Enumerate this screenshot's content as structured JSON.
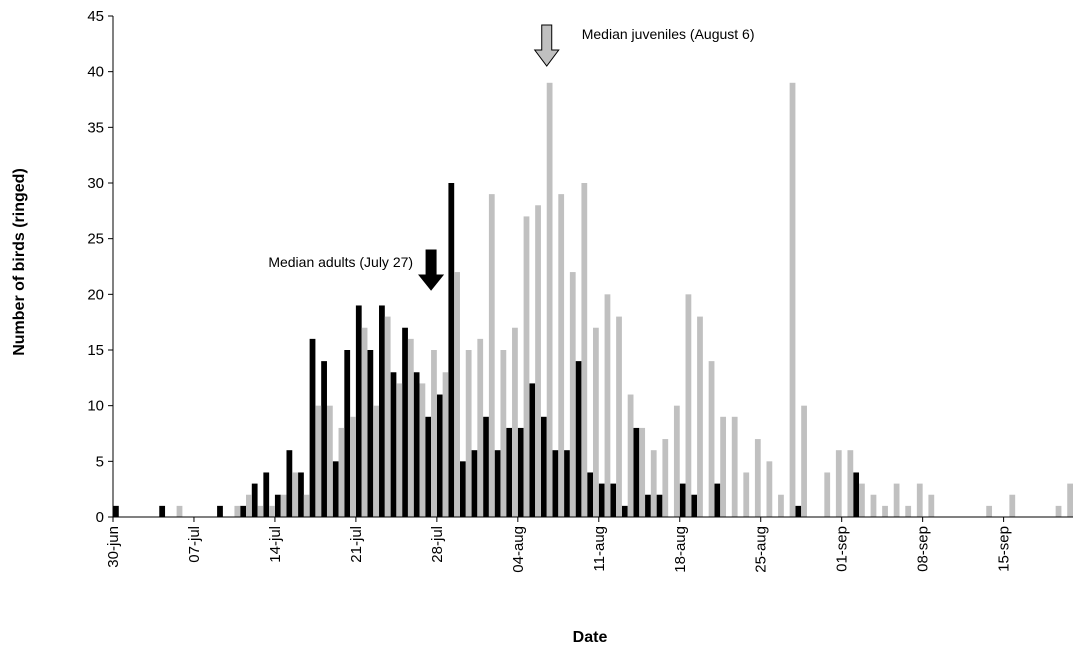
{
  "chart_data": {
    "type": "bar",
    "xlabel": "Date",
    "ylabel": "Number of birds (ringed)",
    "ylim": [
      0,
      45
    ],
    "yticks": [
      0,
      5,
      10,
      15,
      20,
      25,
      30,
      35,
      40,
      45
    ],
    "xlim": [
      "2000-06-30",
      "2000-09-20"
    ],
    "xtick_labels": [
      "30-jun",
      "07-jul",
      "14-jul",
      "21-jul",
      "28-jul",
      "04-aug",
      "11-aug",
      "18-aug",
      "25-aug",
      "01-sep",
      "08-sep",
      "15-sep"
    ],
    "xtick_dates": [
      "2000-06-30",
      "2000-07-07",
      "2000-07-14",
      "2000-07-21",
      "2000-07-28",
      "2000-08-04",
      "2000-08-11",
      "2000-08-18",
      "2000-08-25",
      "2000-09-01",
      "2000-09-08",
      "2000-09-15"
    ],
    "grid": false,
    "legend": "none",
    "series": [
      {
        "key": "adults",
        "color": "#000000",
        "points": [
          [
            "2000-06-30",
            1
          ],
          [
            "2000-07-04",
            1
          ],
          [
            "2000-07-09",
            1
          ],
          [
            "2000-07-11",
            1
          ],
          [
            "2000-07-12",
            3
          ],
          [
            "2000-07-13",
            4
          ],
          [
            "2000-07-14",
            2
          ],
          [
            "2000-07-15",
            6
          ],
          [
            "2000-07-16",
            4
          ],
          [
            "2000-07-17",
            16
          ],
          [
            "2000-07-18",
            14
          ],
          [
            "2000-07-19",
            5
          ],
          [
            "2000-07-20",
            15
          ],
          [
            "2000-07-21",
            19
          ],
          [
            "2000-07-22",
            15
          ],
          [
            "2000-07-23",
            19
          ],
          [
            "2000-07-24",
            13
          ],
          [
            "2000-07-25",
            17
          ],
          [
            "2000-07-26",
            13
          ],
          [
            "2000-07-27",
            9
          ],
          [
            "2000-07-28",
            11
          ],
          [
            "2000-07-29",
            30
          ],
          [
            "2000-07-30",
            5
          ],
          [
            "2000-07-31",
            6
          ],
          [
            "2000-08-01",
            9
          ],
          [
            "2000-08-02",
            6
          ],
          [
            "2000-08-03",
            8
          ],
          [
            "2000-08-04",
            8
          ],
          [
            "2000-08-05",
            12
          ],
          [
            "2000-08-06",
            9
          ],
          [
            "2000-08-07",
            6
          ],
          [
            "2000-08-08",
            6
          ],
          [
            "2000-08-09",
            14
          ],
          [
            "2000-08-10",
            4
          ],
          [
            "2000-08-11",
            3
          ],
          [
            "2000-08-12",
            3
          ],
          [
            "2000-08-13",
            1
          ],
          [
            "2000-08-14",
            8
          ],
          [
            "2000-08-15",
            2
          ],
          [
            "2000-08-16",
            2
          ],
          [
            "2000-08-18",
            3
          ],
          [
            "2000-08-19",
            2
          ],
          [
            "2000-08-21",
            3
          ],
          [
            "2000-08-28",
            1
          ],
          [
            "2000-09-02",
            4
          ]
        ]
      },
      {
        "key": "juveniles",
        "color": "#c0c0c0",
        "points": [
          [
            "2000-07-05",
            1
          ],
          [
            "2000-07-10",
            1
          ],
          [
            "2000-07-11",
            2
          ],
          [
            "2000-07-12",
            1
          ],
          [
            "2000-07-13",
            1
          ],
          [
            "2000-07-14",
            2
          ],
          [
            "2000-07-15",
            4
          ],
          [
            "2000-07-16",
            2
          ],
          [
            "2000-07-17",
            10
          ],
          [
            "2000-07-18",
            10
          ],
          [
            "2000-07-19",
            8
          ],
          [
            "2000-07-20",
            9
          ],
          [
            "2000-07-21",
            17
          ],
          [
            "2000-07-22",
            10
          ],
          [
            "2000-07-23",
            18
          ],
          [
            "2000-07-24",
            12
          ],
          [
            "2000-07-25",
            16
          ],
          [
            "2000-07-26",
            12
          ],
          [
            "2000-07-27",
            15
          ],
          [
            "2000-07-28",
            13
          ],
          [
            "2000-07-29",
            22
          ],
          [
            "2000-07-30",
            15
          ],
          [
            "2000-07-31",
            16
          ],
          [
            "2000-08-01",
            29
          ],
          [
            "2000-08-02",
            15
          ],
          [
            "2000-08-03",
            17
          ],
          [
            "2000-08-04",
            27
          ],
          [
            "2000-08-05",
            28
          ],
          [
            "2000-08-06",
            39
          ],
          [
            "2000-08-07",
            29
          ],
          [
            "2000-08-08",
            22
          ],
          [
            "2000-08-09",
            30
          ],
          [
            "2000-08-10",
            17
          ],
          [
            "2000-08-11",
            20
          ],
          [
            "2000-08-12",
            18
          ],
          [
            "2000-08-13",
            11
          ],
          [
            "2000-08-14",
            8
          ],
          [
            "2000-08-15",
            6
          ],
          [
            "2000-08-16",
            7
          ],
          [
            "2000-08-17",
            10
          ],
          [
            "2000-08-18",
            20
          ],
          [
            "2000-08-19",
            18
          ],
          [
            "2000-08-20",
            14
          ],
          [
            "2000-08-21",
            9
          ],
          [
            "2000-08-22",
            9
          ],
          [
            "2000-08-23",
            4
          ],
          [
            "2000-08-24",
            7
          ],
          [
            "2000-08-25",
            5
          ],
          [
            "2000-08-26",
            2
          ],
          [
            "2000-08-27",
            39
          ],
          [
            "2000-08-28",
            10
          ],
          [
            "2000-08-30",
            4
          ],
          [
            "2000-08-31",
            6
          ],
          [
            "2000-09-01",
            6
          ],
          [
            "2000-09-02",
            3
          ],
          [
            "2000-09-03",
            2
          ],
          [
            "2000-09-04",
            1
          ],
          [
            "2000-09-05",
            3
          ],
          [
            "2000-09-06",
            1
          ],
          [
            "2000-09-07",
            3
          ],
          [
            "2000-09-08",
            2
          ],
          [
            "2000-09-13",
            1
          ],
          [
            "2000-09-15",
            2
          ],
          [
            "2000-09-19",
            1
          ],
          [
            "2000-09-20",
            3
          ]
        ]
      }
    ],
    "annotations": [
      {
        "text": "Median adults (July 27)",
        "date": "2000-07-27",
        "arrow_color": "#000000"
      },
      {
        "text": "Median juveniles (August 6)",
        "date": "2000-08-06",
        "arrow_color": "#c0c0c0"
      }
    ]
  }
}
